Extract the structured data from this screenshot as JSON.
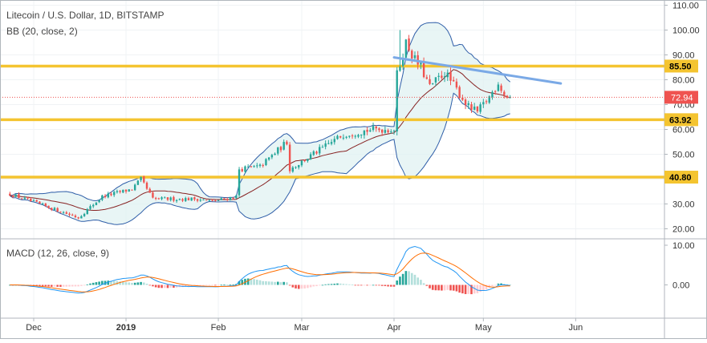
{
  "chart_data": {
    "type": "candlestick",
    "title": "Litecoin / U.S. Dollar, 1D, BITSTAMP",
    "symbol": "Litecoin / U.S. Dollar",
    "interval": "1D",
    "exchange": "BITSTAMP",
    "indicator_bb": "BB (20, close, 2)",
    "indicator_macd": "MACD (12, 26, close, 9)",
    "price_axis": {
      "min": 17,
      "max": 111,
      "ticks": [
        "110.00",
        "100.00",
        "90.00",
        "80.00",
        "70.00",
        "60.00",
        "50.00",
        "40.00",
        "30.00",
        "20.00"
      ]
    },
    "macd_axis": {
      "min": -8,
      "max": 12,
      "ticks": [
        "10.00",
        "0.00"
      ]
    },
    "time_axis": [
      "Dec",
      "2019",
      "Feb",
      "Mar",
      "Apr",
      "May",
      "Jun"
    ],
    "current_price": "72.94",
    "levels": [
      {
        "label": "85.50",
        "value": 85.5
      },
      {
        "label": "63.92",
        "value": 63.92
      },
      {
        "label": "40.80",
        "value": 40.8
      }
    ],
    "trendline": {
      "from": {
        "date": "2019-04-01",
        "value": 89
      },
      "to": {
        "date": "2019-05-27",
        "value": 78.5
      }
    },
    "colors": {
      "up": "#26a69a",
      "down": "#ef5350",
      "bb_basis": "#872323",
      "bb_band": "#2f5ea8",
      "bb_fill": "#e0f2f1",
      "level": "#f4c430",
      "trend": "#7aa9e6",
      "macd": "#2196f3",
      "signal": "#ff6d00"
    },
    "start_date": "2018-11-23",
    "ohlc_anchors": [
      [
        "2018-11-23",
        34
      ],
      [
        "2018-12-10",
        27
      ],
      [
        "2018-12-16",
        24.5
      ],
      [
        "2018-12-24",
        33
      ],
      [
        "2019-01-03",
        36
      ],
      [
        "2019-01-06",
        40
      ],
      [
        "2019-01-10",
        32
      ],
      [
        "2019-01-25",
        32
      ],
      [
        "2019-01-30",
        31
      ],
      [
        "2019-02-07",
        33
      ],
      [
        "2019-02-08",
        44
      ],
      [
        "2019-02-15",
        45
      ],
      [
        "2019-02-24",
        55
      ],
      [
        "2019-02-25",
        44
      ],
      [
        "2019-03-01",
        47
      ],
      [
        "2019-03-15",
        58
      ],
      [
        "2019-03-25",
        60
      ],
      [
        "2019-04-01",
        60
      ],
      [
        "2019-04-02",
        82
      ],
      [
        "2019-04-05",
        95
      ],
      [
        "2019-04-08",
        88
      ],
      [
        "2019-04-10",
        85
      ],
      [
        "2019-04-13",
        77
      ],
      [
        "2019-04-18",
        83
      ],
      [
        "2019-04-22",
        76
      ],
      [
        "2019-04-26",
        69
      ],
      [
        "2019-04-29",
        67
      ],
      [
        "2019-05-03",
        73
      ],
      [
        "2019-05-06",
        79
      ],
      [
        "2019-05-08",
        74
      ],
      [
        "2019-05-10",
        73
      ]
    ]
  }
}
